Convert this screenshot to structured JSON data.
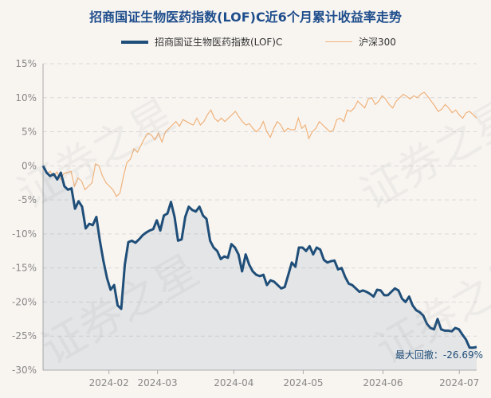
{
  "title": "招商国证生物医药指数(LOF)C近6个月累计收益率走势",
  "legend": {
    "fund": "招商国证生物医药指数(LOF)C",
    "index": "沪深300"
  },
  "watermark": "证券之星",
  "max_drawdown": {
    "label": "最大回撤：",
    "value": "-26.69%"
  },
  "colors": {
    "fund_line": "#1f4e79",
    "fund_fill": "#1f4e79",
    "index_line": "#f0b27a",
    "background": "#f8f5f1",
    "grid": "#d9d9d9",
    "axis_text": "#888888"
  },
  "chart_data": {
    "type": "line",
    "title": "招商国证生物医药指数(LOF)C近6个月累计收益率走势",
    "xlabel": "",
    "ylabel": "",
    "ylim": [
      -30,
      15
    ],
    "yticks": [
      15,
      10,
      5,
      0,
      -5,
      -10,
      -15,
      -20,
      -25,
      -30
    ],
    "ytick_labels": [
      "15%",
      "10%",
      "5%",
      "0%",
      "-5%",
      "-10%",
      "-15%",
      "-20%",
      "-25%",
      "-30%"
    ],
    "xrange": [
      0,
      125
    ],
    "xticks": [
      {
        "label": "2024-02",
        "x": 19
      },
      {
        "label": "2024-03",
        "x": 33
      },
      {
        "label": "2024-04",
        "x": 55
      },
      {
        "label": "2024-05",
        "x": 75
      },
      {
        "label": "2024-06",
        "x": 98
      },
      {
        "label": "2024-07",
        "x": 120
      }
    ],
    "grid": true,
    "legend_position": "top",
    "series": [
      {
        "name": "招商国证生物医药指数(LOF)C",
        "style": "line-area",
        "values": [
          0.0,
          -1.0,
          -1.5,
          -1.2,
          -2.0,
          -1.0,
          -3.0,
          -3.5,
          -3.3,
          -6.3,
          -5.2,
          -6.0,
          -9.2,
          -8.5,
          -8.7,
          -7.5,
          -11.0,
          -14.0,
          -16.5,
          -18.2,
          -17.5,
          -20.5,
          -21.0,
          -14.5,
          -11.2,
          -11.0,
          -11.3,
          -10.8,
          -10.2,
          -9.8,
          -9.5,
          -9.3,
          -8.0,
          -9.5,
          -7.3,
          -7.0,
          -5.3,
          -7.5,
          -11.0,
          -10.8,
          -7.5,
          -6.0,
          -6.5,
          -6.7,
          -6.0,
          -7.3,
          -7.8,
          -11.0,
          -12.0,
          -12.5,
          -13.7,
          -13.3,
          -13.5,
          -11.5,
          -12.0,
          -13.0,
          -15.5,
          -13.0,
          -14.5,
          -15.5,
          -16.0,
          -16.2,
          -16.0,
          -17.5,
          -16.8,
          -17.0,
          -17.5,
          -18.0,
          -17.8,
          -16.0,
          -14.2,
          -14.8,
          -12.0,
          -12.0,
          -12.5,
          -11.8,
          -13.0,
          -12.0,
          -12.3,
          -13.8,
          -14.2,
          -14.0,
          -13.9,
          -15.2,
          -15.0,
          -16.3,
          -17.3,
          -17.5,
          -18.0,
          -18.5,
          -18.3,
          -18.5,
          -18.8,
          -19.2,
          -18.2,
          -18.3,
          -19.0,
          -19.0,
          -18.5,
          -18.0,
          -18.3,
          -19.5,
          -20.0,
          -19.2,
          -20.5,
          -21.2,
          -21.5,
          -22.0,
          -23.2,
          -23.8,
          -24.0,
          -22.5,
          -24.0,
          -24.2,
          -24.2,
          -24.3,
          -23.8,
          -24.0,
          -24.8,
          -25.5,
          -26.7,
          -26.7,
          -26.6
        ]
      },
      {
        "name": "沪深300",
        "style": "line",
        "values": [
          0.0,
          -1.2,
          -0.8,
          -1.5,
          -0.9,
          -2.0,
          -1.1,
          -1.0,
          -0.8,
          -3.0,
          -1.8,
          -2.2,
          -3.5,
          -3.0,
          -2.5,
          0.3,
          0.0,
          -1.5,
          -2.5,
          -3.0,
          -3.5,
          -4.5,
          -4.0,
          -1.5,
          0.5,
          1.0,
          2.5,
          2.0,
          3.0,
          4.0,
          4.8,
          4.5,
          3.8,
          4.8,
          3.5,
          5.0,
          5.5,
          6.0,
          6.5,
          5.8,
          6.8,
          6.5,
          6.2,
          6.0,
          7.0,
          6.0,
          6.5,
          7.5,
          8.2,
          7.0,
          6.5,
          7.0,
          6.5,
          7.0,
          7.5,
          8.0,
          7.2,
          6.5,
          6.0,
          6.2,
          5.5,
          5.0,
          5.5,
          6.5,
          5.0,
          4.2,
          5.5,
          6.5,
          6.0,
          5.0,
          5.5,
          5.3,
          5.3,
          7.0,
          5.5,
          6.0,
          4.0,
          5.0,
          5.5,
          6.5,
          6.0,
          5.5,
          5.0,
          5.2,
          6.8,
          7.0,
          6.5,
          8.2,
          8.0,
          8.5,
          9.5,
          9.0,
          8.5,
          9.8,
          10.0,
          9.0,
          9.5,
          10.3,
          9.8,
          9.0,
          8.5,
          9.5,
          10.0,
          10.5,
          10.2,
          9.8,
          10.3,
          10.0,
          10.5,
          10.8,
          10.2,
          9.5,
          8.8,
          8.0,
          8.3,
          9.0,
          8.5,
          7.8,
          8.2,
          7.5,
          7.0,
          7.8,
          8.0,
          7.5,
          7.0
        ]
      }
    ]
  }
}
